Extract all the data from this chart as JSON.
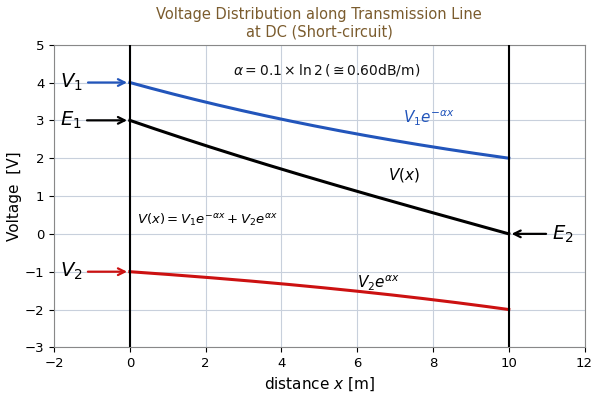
{
  "title_line1": "Voltage Distribution along Transmission Line",
  "title_line2": "at DC (Short-circuit)",
  "xlabel": "distance $x$ [m]",
  "ylabel": "Voltage  [V]",
  "alpha": 0.06931471805599453,
  "V1": 4.0,
  "V2": -1.0,
  "x_start": 0.0,
  "x_end": 10.0,
  "xlim": [
    -2,
    12
  ],
  "ylim": [
    -3,
    5
  ],
  "xticks": [
    -2,
    0,
    2,
    4,
    6,
    8,
    10,
    12
  ],
  "yticks": [
    -3,
    -2,
    -1,
    0,
    1,
    2,
    3,
    4,
    5
  ],
  "color_blue": "#2255BB",
  "color_red": "#CC1111",
  "color_black": "#000000",
  "color_title": "#7B5C2E",
  "vline_color": "#000000",
  "grid_color": "#C8D0DC",
  "annotation_alpha": "$\\alpha = 0.1 \\times \\ln 2\\,(\\cong 0.60\\mathrm{dB/m})$",
  "label_V1e": "$V_1 e^{-\\alpha x}$",
  "label_V2e": "$V_2 e^{\\alpha x}$",
  "label_Vx": "$V(x)$",
  "label_Vx_eq": "$V(x) = V_1 e^{-\\alpha x} + V_2 e^{\\alpha x}$",
  "label_V1": "$V_1$",
  "label_V2": "$V_2$",
  "label_E1": "$E_1$",
  "label_E2": "$E_2$",
  "background_color": "#ffffff",
  "spine_color": "#888888"
}
